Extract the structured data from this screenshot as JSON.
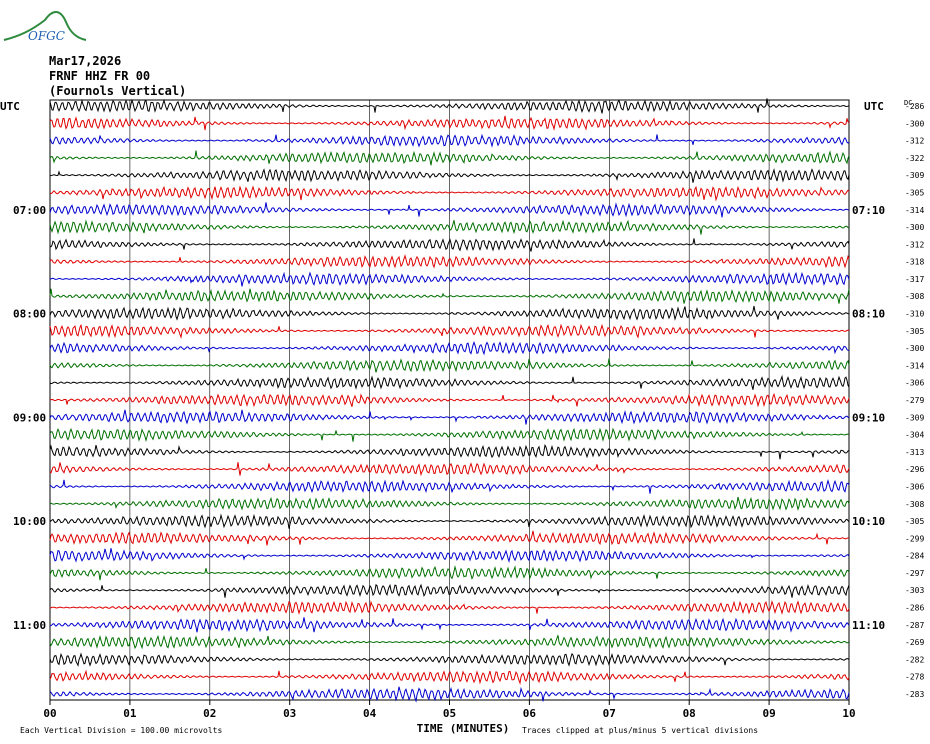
{
  "logo": {
    "text": "OFGC",
    "color": "#1f5fb3",
    "swoosh_color": "#2e8b3e"
  },
  "header": {
    "date": "Mar17,2026",
    "station": "FRNF HHZ FR 00",
    "location": "(Fournols Vertical)"
  },
  "chart_data": {
    "type": "line",
    "subtype": "helicorder",
    "left_axis_label": "UTC",
    "right_axis_label": "UTC",
    "right_extra_label": "DC",
    "xlabel": "TIME (MINUTES)",
    "x_ticks": [
      "00",
      "01",
      "02",
      "03",
      "04",
      "05",
      "06",
      "07",
      "08",
      "09",
      "10"
    ],
    "xlim": [
      0,
      10
    ],
    "left_time_labels": [
      {
        "row": 6,
        "text": "07:00"
      },
      {
        "row": 12,
        "text": "08:00"
      },
      {
        "row": 18,
        "text": "09:00"
      },
      {
        "row": 24,
        "text": "10:00"
      },
      {
        "row": 30,
        "text": "11:00"
      }
    ],
    "right_time_labels": [
      {
        "row": 6,
        "text": "07:10"
      },
      {
        "row": 12,
        "text": "08:10"
      },
      {
        "row": 18,
        "text": "09:10"
      },
      {
        "row": 24,
        "text": "10:10"
      },
      {
        "row": 30,
        "text": "11:10"
      }
    ],
    "row_first_label": "UTC",
    "trace_colors": [
      "#000000",
      "#e00000",
      "#0000d0",
      "#007000"
    ],
    "dc_offsets": [
      -286,
      -300,
      -312,
      -322,
      -309,
      -305,
      -314,
      -300,
      -312,
      -318,
      -317,
      -308,
      -310,
      -305,
      -300,
      -314,
      -306,
      -279,
      -309,
      -304,
      -313,
      -296,
      -306,
      -308,
      -305,
      -299,
      -284,
      -297,
      -303,
      -286,
      -287,
      -269,
      -282,
      -278,
      -283
    ],
    "footer_left": "Each Vertical Division =  100.00 microvolts",
    "footer_right": "Traces clipped at plus/minus 5 vertical divisions",
    "grid": true
  }
}
